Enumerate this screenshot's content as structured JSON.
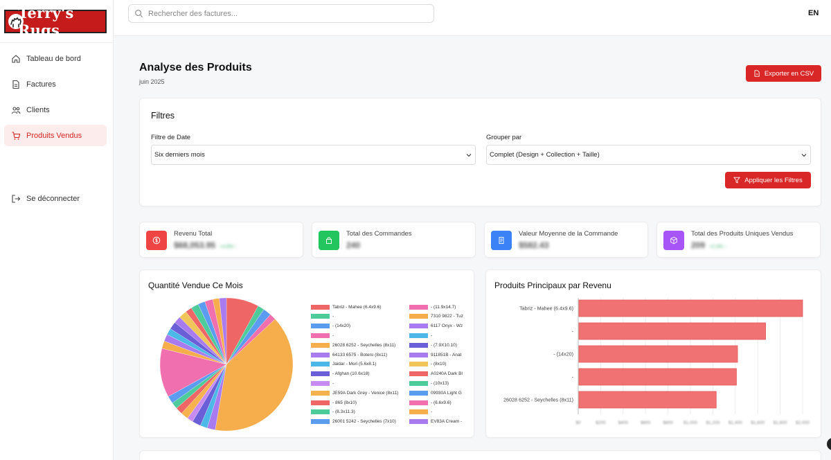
{
  "brand": {
    "logo_text": "Terry's Rugs",
    "color": "#c51b1b"
  },
  "sidebar": {
    "items": [
      {
        "label": "Tableau de bord",
        "icon": "home-icon"
      },
      {
        "label": "Factures",
        "icon": "document-icon"
      },
      {
        "label": "Clients",
        "icon": "users-icon"
      },
      {
        "label": "Produits Vendus",
        "icon": "cart-icon",
        "active": true
      }
    ],
    "logout_label": "Se déconnecter"
  },
  "topbar": {
    "search_placeholder": "Rechercher des factures...",
    "language": "EN"
  },
  "page": {
    "title": "Analyse des Produits",
    "subtitle": "juin 2025",
    "export_label": "Exporter en CSV"
  },
  "filters": {
    "title": "Filtres",
    "date_label": "Filtre de Date",
    "date_value": "Six derniers mois",
    "group_label": "Grouper par",
    "group_value": "Complet (Design + Collection + Taille)",
    "apply_label": "Appliquer les Filtres"
  },
  "stats": [
    {
      "label": "Revenu Total",
      "value": "$68,053.95",
      "change": "+4.8% ↑",
      "icon": "dollar-icon",
      "color": "#ef4444"
    },
    {
      "label": "Total des Commandes",
      "value": "240",
      "change": "",
      "icon": "bag-icon",
      "color": "#22c55e"
    },
    {
      "label": "Valeur Moyenne de la Commande",
      "value": "$582.43",
      "change": "",
      "icon": "receipt-icon",
      "color": "#3b82f6"
    },
    {
      "label": "Total des Produits Uniques Vendus",
      "value": "209",
      "change": "+2.3% ↑",
      "icon": "box-icon",
      "color": "#a855f7"
    }
  ],
  "chart_data": [
    {
      "type": "pie",
      "title": "Quantité Vendue Ce Mois",
      "legend_placement": "right",
      "labels": [
        "Tabriz - Mahee (6.4x9.6)",
        "-",
        "- (14x20)",
        "-",
        "26028 6252 - Seychelles (8x11)",
        "64133 6575 - Botero (8x11)",
        "Jaidar - Mori (5.6x8.1)",
        "- Afghan (10.6x18)",
        "-",
        "JE59A Dark Grey - Venice (8x11)",
        "- 865 (8x10)",
        "- (8.3x11.3)",
        "26001 5242 - Seychelles (7x10)",
        "- (11.9x14.7)",
        "7310 9822 - Tuz",
        "6117 Onyx - Wz",
        "-",
        "- (7.9X10.10)",
        "911851B - Anat",
        "- (8x10)",
        "A0240A Dark Bl",
        "- (10x13)",
        "09930A Light G",
        "- (6.6x9.6)",
        "-",
        "EV83A Cream -"
      ],
      "colors": [
        "#ee6666",
        "#4ecb9a",
        "#5b9bf0",
        "#f06fae",
        "#f6ae4c",
        "#a87cf0",
        "#4cb8e8",
        "#6b5fd8",
        "#c78bf2",
        "#f6b24e",
        "#ee6666",
        "#4ecb9a",
        "#5b9bf0",
        "#f06fae",
        "#f6ae4c",
        "#a87cf0",
        "#4cb8e8",
        "#6b5fd8",
        "#a87cf0",
        "#f0c65a",
        "#ee6666",
        "#4ecb9a",
        "#5b9bf0",
        "#f06fae",
        "#f6ae4c",
        "#a87cf0"
      ],
      "values": [
        6,
        1.2,
        1.5,
        1.2,
        30,
        1.5,
        1.3,
        1.6,
        1.1,
        1.4,
        1.3,
        1.2,
        1.4,
        9,
        1.4,
        1.3,
        1.2,
        1.4,
        1.3,
        1.5,
        1.2,
        1.4,
        1.3,
        1.5,
        1.2,
        1.3
      ]
    },
    {
      "type": "bar",
      "orientation": "horizontal",
      "title": "Produits Principaux par Revenu",
      "categories": [
        "Tabriz - Mahee (6.4x9.6)",
        "-",
        "- (14x20)",
        "-",
        "26028 6252 - Seychelles (8x11)"
      ],
      "values": [
        2000,
        1670,
        1420,
        1410,
        1230
      ],
      "xlim": [
        0,
        2000
      ],
      "x_ticks": [
        "$0",
        "$200",
        "$400",
        "$600",
        "$800",
        "$1,000",
        "$1,200",
        "$1,400",
        "$1,600",
        "$1,800",
        "$2,000"
      ],
      "color": "#f07272",
      "grid": true
    }
  ]
}
